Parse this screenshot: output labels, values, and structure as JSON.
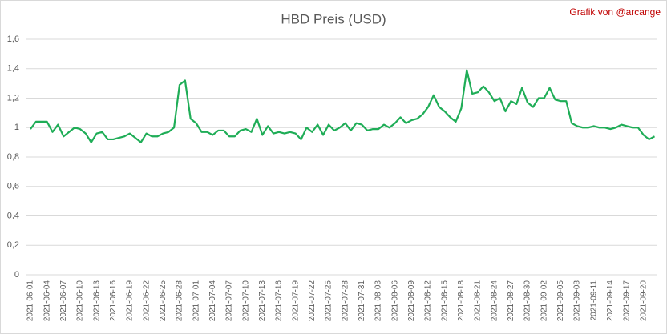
{
  "chart_data": {
    "type": "line",
    "title": "HBD Preis (USD)",
    "annotation": "Grafik von @arcange",
    "categories": [
      "2021-06-01",
      null,
      null,
      "2021-06-04",
      null,
      null,
      "2021-06-07",
      null,
      null,
      "2021-06-10",
      null,
      null,
      "2021-06-13",
      null,
      null,
      "2021-06-16",
      null,
      null,
      "2021-06-19",
      null,
      null,
      "2021-06-22",
      null,
      null,
      "2021-06-25",
      null,
      null,
      "2021-06-28",
      null,
      null,
      "2021-07-01",
      null,
      null,
      "2021-07-04",
      null,
      null,
      "2021-07-07",
      null,
      null,
      "2021-07-10",
      null,
      null,
      "2021-07-13",
      null,
      null,
      "2021-07-16",
      null,
      null,
      "2021-07-19",
      null,
      null,
      "2021-07-22",
      null,
      null,
      "2021-07-25",
      null,
      null,
      "2021-07-28",
      null,
      null,
      "2021-07-31",
      null,
      null,
      "2021-08-03",
      null,
      null,
      "2021-08-06",
      null,
      null,
      "2021-08-09",
      null,
      null,
      "2021-08-12",
      null,
      null,
      "2021-08-15",
      null,
      null,
      "2021-08-18",
      null,
      null,
      "2021-08-21",
      null,
      null,
      "2021-08-24",
      null,
      null,
      "2021-08-27",
      null,
      null,
      "2021-08-30",
      null,
      null,
      "2021-09-02",
      null,
      null,
      "2021-09-05",
      null,
      null,
      "2021-09-08",
      null,
      null,
      "2021-09-11",
      null,
      null,
      "2021-09-14",
      null,
      null,
      "2021-09-17",
      null,
      null,
      "2021-09-20",
      null,
      null
    ],
    "values": [
      0.99,
      1.04,
      1.04,
      1.04,
      0.97,
      1.02,
      0.94,
      0.97,
      1.0,
      0.99,
      0.96,
      0.9,
      0.96,
      0.97,
      0.92,
      0.92,
      0.93,
      0.94,
      0.96,
      0.93,
      0.9,
      0.96,
      0.94,
      0.94,
      0.96,
      0.97,
      1.0,
      1.29,
      1.32,
      1.06,
      1.03,
      0.97,
      0.97,
      0.95,
      0.98,
      0.98,
      0.94,
      0.94,
      0.98,
      0.99,
      0.97,
      1.06,
      0.95,
      1.01,
      0.96,
      0.97,
      0.96,
      0.97,
      0.96,
      0.92,
      1.0,
      0.97,
      1.02,
      0.95,
      1.02,
      0.98,
      1.0,
      1.03,
      0.98,
      1.03,
      1.02,
      0.98,
      0.99,
      0.99,
      1.02,
      1.0,
      1.03,
      1.07,
      1.03,
      1.05,
      1.06,
      1.09,
      1.14,
      1.22,
      1.14,
      1.11,
      1.07,
      1.04,
      1.13,
      1.39,
      1.23,
      1.24,
      1.28,
      1.24,
      1.18,
      1.2,
      1.11,
      1.18,
      1.16,
      1.27,
      1.17,
      1.14,
      1.2,
      1.2,
      1.27,
      1.19,
      1.18,
      1.18,
      1.03,
      1.01,
      1.0,
      1.0,
      1.01,
      1.0,
      1.0,
      0.99,
      1.0,
      1.02,
      1.01,
      1.0,
      1.0,
      0.95,
      0.92,
      0.94
    ],
    "color": "#1fad57",
    "ylim": [
      0,
      1.6
    ],
    "yticks": [
      0,
      {
        "value": 0.2,
        "label": "0,2"
      },
      {
        "value": 0.4,
        "label": "0,4"
      },
      {
        "value": 0.6,
        "label": "0,6"
      },
      {
        "value": 0.8,
        "label": "0,8"
      },
      1,
      {
        "value": 1.2,
        "label": "1,2"
      },
      {
        "value": 1.4,
        "label": "1,4"
      },
      {
        "value": 1.6,
        "label": "1,6"
      }
    ],
    "grid": true
  }
}
